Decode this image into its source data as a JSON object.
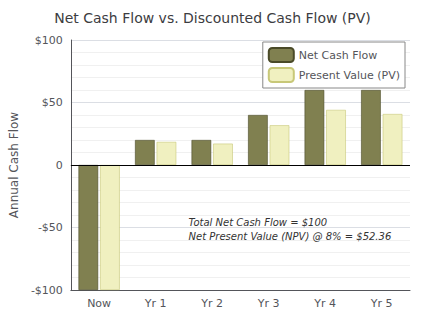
{
  "chart_data": {
    "type": "bar",
    "title": "Net Cash Flow vs. Discounted Cash Flow (PV)",
    "ylabel": "Annual Cash Flow",
    "categories": [
      "Now",
      "Yr 1",
      "Yr 2",
      "Yr 3",
      "Yr 4",
      "Yr 5"
    ],
    "series": [
      {
        "name": "Net Cash Flow",
        "color": "#808050",
        "values": [
          -100,
          20,
          20,
          40,
          60,
          60
        ]
      },
      {
        "name": "Present Value (PV)",
        "color": "#f0f0c0",
        "values": [
          -100,
          18.5,
          17.1,
          31.8,
          44.1,
          40.8
        ]
      }
    ],
    "ylim": [
      -100,
      100
    ],
    "yticks": [
      {
        "value": -100,
        "label": "-$100"
      },
      {
        "value": -50,
        "label": "-$50"
      },
      0,
      {
        "value": 50,
        "label": "$50"
      },
      {
        "value": 100,
        "label": "$100"
      }
    ],
    "grid": true,
    "legend": "upper right",
    "annotations": [
      "Total Net Cash Flow = $100",
      "Net Present Value (NPV) @ 8% = $52.36"
    ]
  }
}
